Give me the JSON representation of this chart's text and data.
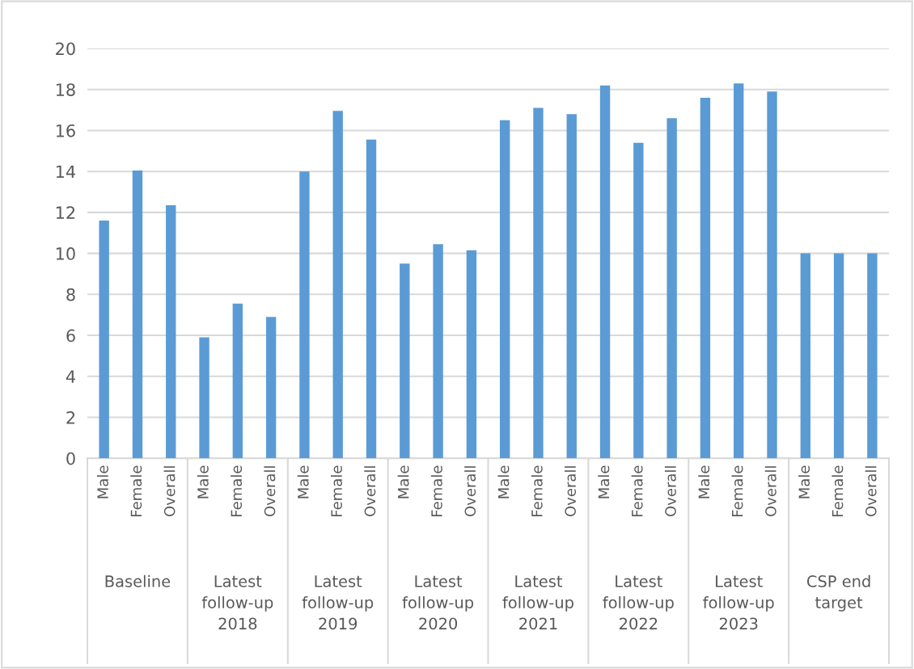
{
  "chart_data": {
    "type": "bar",
    "categories": [
      "Male",
      "Female",
      "Overall",
      "Male",
      "Female",
      "Overall",
      "Male",
      "Female",
      "Overall",
      "Male",
      "Female",
      "Overall",
      "Male",
      "Female",
      "Overall",
      "Male",
      "Female",
      "Overall",
      "Male",
      "Female",
      "Overall",
      "Male",
      "Female",
      "Overall"
    ],
    "values": [
      11.6,
      14.05,
      12.35,
      5.9,
      7.55,
      6.9,
      14.0,
      16.95,
      15.55,
      9.5,
      10.45,
      10.15,
      16.5,
      17.1,
      16.8,
      18.2,
      15.4,
      16.6,
      17.6,
      18.3,
      17.9,
      10,
      10,
      10
    ],
    "color": "#5b9bd5",
    "ylim": [
      0,
      20
    ],
    "yticks": [
      0,
      2,
      4,
      6,
      8,
      10,
      12,
      14,
      16,
      18,
      20
    ],
    "grid": "y",
    "annotations": [
      "Baseline",
      "Latest\nfollow-up\n2018",
      "Latest\nfollow-up\n2019",
      "Latest\nfollow-up\n2020",
      "Latest\nfollow-up\n2021",
      "Latest\nfollow-up\n2022",
      "Latest\nfollow-up\n2023",
      "CSP end\ntarget"
    ]
  }
}
